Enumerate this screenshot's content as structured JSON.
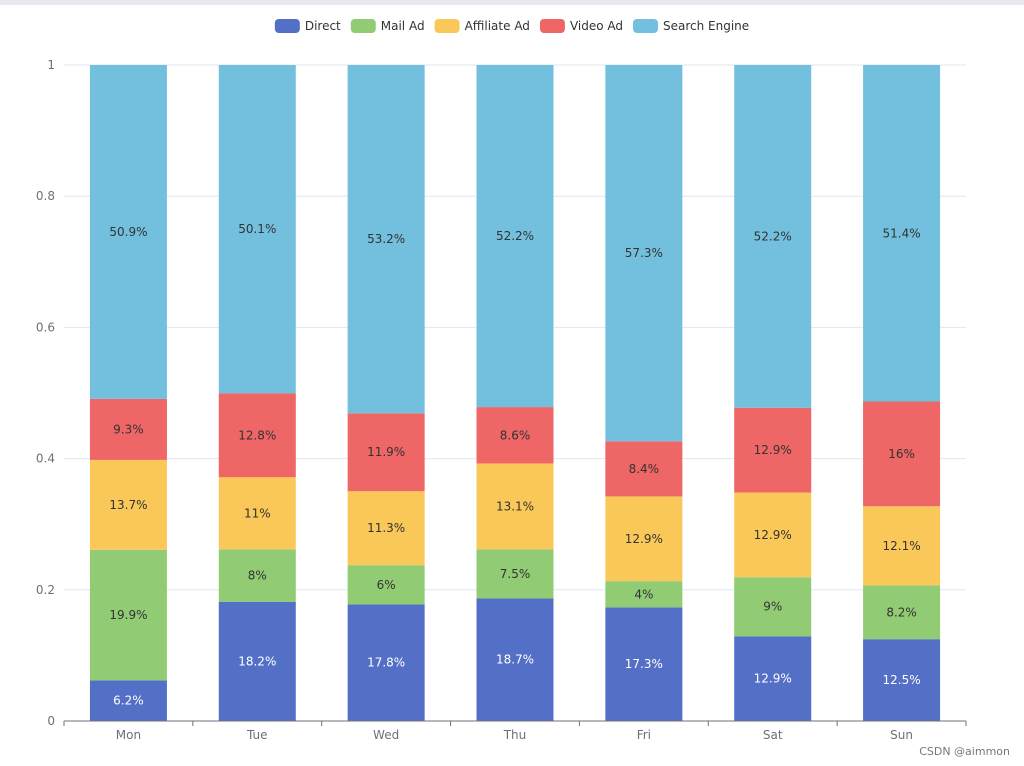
{
  "chart_data": {
    "type": "bar",
    "stacked": true,
    "normalized": true,
    "categories": [
      "Mon",
      "Tue",
      "Wed",
      "Thu",
      "Fri",
      "Sat",
      "Sun"
    ],
    "yticks": [
      "0",
      "0.2",
      "0.4",
      "0.6",
      "0.8",
      "1"
    ],
    "ylim": [
      0,
      1
    ],
    "legend_position": "top-center",
    "series": [
      {
        "name": "Direct",
        "color": "#5470c6",
        "label_color": "#ffffff",
        "values": [
          6.2,
          18.2,
          17.8,
          18.7,
          17.3,
          12.9,
          12.5
        ],
        "labels": [
          "6.2%",
          "18.2%",
          "17.8%",
          "18.7%",
          "17.3%",
          "12.9%",
          "12.5%"
        ]
      },
      {
        "name": "Mail Ad",
        "color": "#91cc75",
        "label_color": "#333333",
        "values": [
          19.9,
          8,
          6,
          7.5,
          4,
          9,
          8.2
        ],
        "labels": [
          "19.9%",
          "8%",
          "6%",
          "7.5%",
          "4%",
          "9%",
          "8.2%"
        ]
      },
      {
        "name": "Affiliate Ad",
        "color": "#fac858",
        "label_color": "#333333",
        "values": [
          13.7,
          11,
          11.3,
          13.1,
          12.9,
          12.9,
          12.1
        ],
        "labels": [
          "13.7%",
          "11%",
          "11.3%",
          "13.1%",
          "12.9%",
          "12.9%",
          "12.1%"
        ]
      },
      {
        "name": "Video Ad",
        "color": "#ee6666",
        "label_color": "#333333",
        "values": [
          9.3,
          12.8,
          11.9,
          8.6,
          8.4,
          12.9,
          16
        ],
        "labels": [
          "9.3%",
          "12.8%",
          "11.9%",
          "8.6%",
          "8.4%",
          "12.9%",
          "16%"
        ]
      },
      {
        "name": "Search Engine",
        "color": "#73c0de",
        "label_color": "#333333",
        "values": [
          50.9,
          50.1,
          53.2,
          52.2,
          57.3,
          52.2,
          51.4
        ],
        "labels": [
          "50.9%",
          "50.1%",
          "53.2%",
          "52.2%",
          "57.3%",
          "52.2%",
          "51.4%"
        ]
      }
    ]
  },
  "watermark": "CSDN @aimmon"
}
